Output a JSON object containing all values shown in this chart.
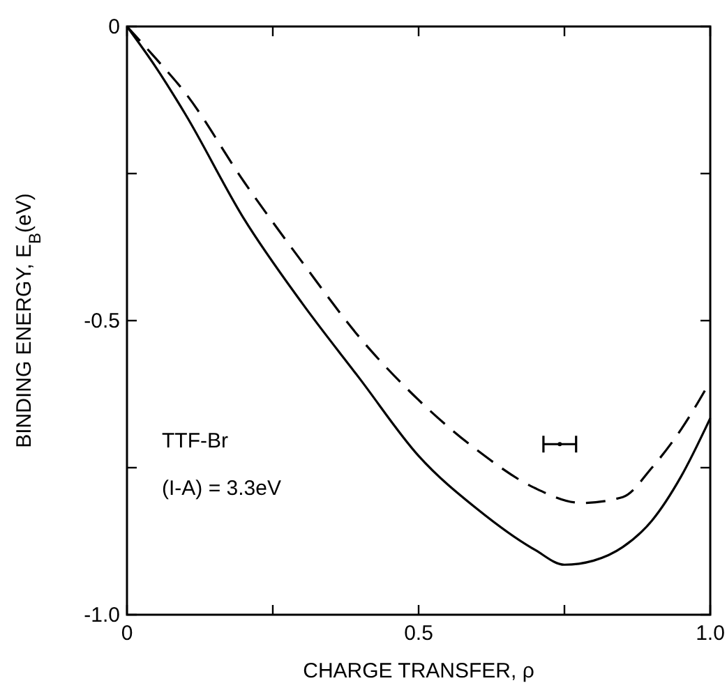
{
  "chart_data": {
    "type": "line",
    "xlabel": "CHARGE TRANSFER, ρ",
    "ylabel": "BINDING ENERGY, E$_{B}$(eV)",
    "xlim": [
      0,
      1
    ],
    "ylim": [
      -1,
      0
    ],
    "xticks": [
      0,
      0.5,
      {
        "value": 1,
        "label": "1.0"
      },
      {
        "value": 0.25,
        "label": null
      },
      {
        "value": 0.75,
        "label": null
      }
    ],
    "yticks": [
      0,
      -0.5,
      {
        "value": -1,
        "label": "-1.0"
      },
      {
        "value": -0.25,
        "label": null
      },
      {
        "value": -0.75,
        "label": null
      }
    ],
    "grid": false,
    "series": [
      {
        "color": "#000000",
        "line_style": "solid",
        "x": [
          0,
          0.05,
          0.1,
          0.2,
          0.3,
          0.4,
          0.5,
          0.6,
          0.7,
          0.75,
          0.8,
          0.85,
          0.9,
          0.95,
          1.0
        ],
        "values": [
          0,
          -0.07,
          -0.149,
          -0.326,
          -0.47,
          -0.6,
          -0.73,
          -0.82,
          -0.89,
          -0.915,
          -0.908,
          -0.885,
          -0.84,
          -0.765,
          -0.666
        ]
      },
      {
        "color": "#000000",
        "line_style": "dashed",
        "x": [
          0,
          0.05,
          0.1,
          0.2,
          0.3,
          0.4,
          0.5,
          0.6,
          0.7,
          0.78,
          0.85,
          0.9,
          0.95,
          1.0
        ],
        "values": [
          0,
          -0.055,
          -0.113,
          -0.263,
          -0.4,
          -0.53,
          -0.635,
          -0.72,
          -0.785,
          -0.81,
          -0.8,
          -0.75,
          -0.685,
          -0.603
        ]
      },
      {
        "type": "scatter",
        "color": "#000000",
        "marker": "circle",
        "x": [
          0.742
        ],
        "values": [
          -0.71
        ],
        "xerrors": [
          0.028
        ]
      }
    ],
    "annotations": [
      "TTF-Br",
      "(I-A) = 3.3eV"
    ]
  }
}
